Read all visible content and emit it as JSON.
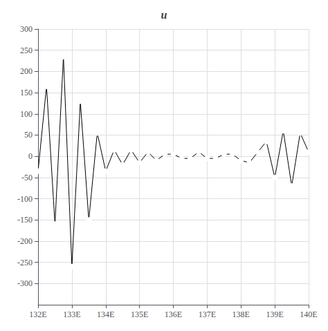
{
  "chart_data": {
    "type": "line",
    "title": "u",
    "x": [
      132.0,
      132.25,
      132.5,
      132.75,
      133.0,
      133.25,
      133.5,
      133.75,
      134.0,
      134.25,
      134.5,
      134.75,
      135.0,
      135.25,
      135.5,
      135.75,
      136.0,
      136.25,
      136.5,
      136.75,
      137.0,
      137.25,
      137.5,
      137.75,
      138.0,
      138.25,
      138.5,
      138.75,
      139.0,
      139.25,
      139.5,
      139.75,
      140.0
    ],
    "values": [
      -35,
      165,
      -160,
      235,
      -260,
      130,
      -150,
      55,
      -35,
      15,
      -20,
      15,
      -15,
      10,
      -10,
      5,
      5,
      -5,
      -5,
      10,
      -5,
      -5,
      5,
      5,
      -10,
      -15,
      10,
      35,
      -50,
      60,
      -70,
      55,
      10
    ],
    "color": "#000000",
    "marker": "o",
    "xlim": [
      132,
      140
    ],
    "xticks": [
      {
        "value": 132,
        "label": "132E"
      },
      {
        "value": 133,
        "label": "133E"
      },
      {
        "value": 134,
        "label": "134E"
      },
      {
        "value": 135,
        "label": "135E"
      },
      {
        "value": 136,
        "label": "136E"
      },
      {
        "value": 137,
        "label": "137E"
      },
      {
        "value": 138,
        "label": "138E"
      },
      {
        "value": 139,
        "label": "139E"
      },
      {
        "value": 140,
        "label": "140E"
      }
    ],
    "ylim": [
      -350,
      300
    ],
    "yticks": [
      -300,
      -250,
      -200,
      -150,
      -100,
      -50,
      0,
      50,
      100,
      150,
      200,
      250,
      300
    ],
    "grid": true
  }
}
